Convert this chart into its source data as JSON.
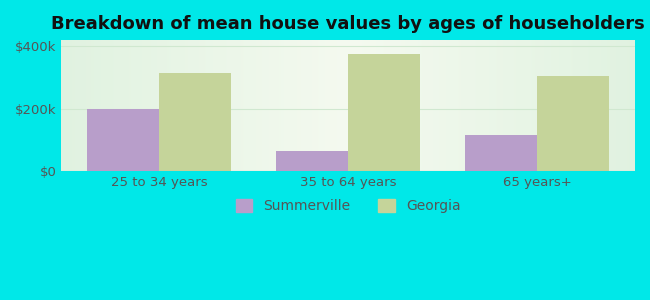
{
  "title": "Breakdown of mean house values by ages of householders",
  "categories": [
    "25 to 34 years",
    "35 to 64 years",
    "65 years+"
  ],
  "summerville_values": [
    200000,
    65000,
    115000
  ],
  "georgia_values": [
    315000,
    375000,
    305000
  ],
  "ylim": [
    0,
    420000
  ],
  "ytick_labels": [
    "$0",
    "$200k",
    "$400k"
  ],
  "ytick_values": [
    0,
    200000,
    400000
  ],
  "summerville_color": "#b89eca",
  "georgia_color": "#c5d49a",
  "bar_width": 0.38,
  "background_color": "#00e8e8",
  "title_fontsize": 13,
  "tick_fontsize": 9.5,
  "legend_fontsize": 10,
  "legend_labels": [
    "Summerville",
    "Georgia"
  ],
  "tick_color": "#555555",
  "grid_color": "#d0e8d0"
}
